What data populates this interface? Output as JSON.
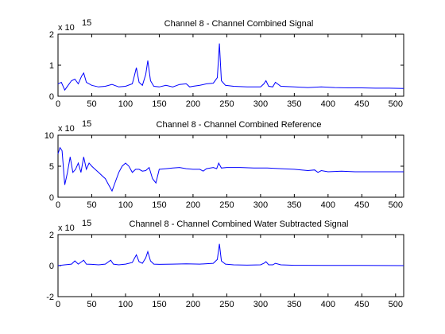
{
  "chart_data": [
    {
      "type": "line",
      "title": "Channel 8 - Channel Combined Signal",
      "y_exponent_label": "x 10",
      "y_exponent": "15",
      "xlim": [
        0,
        512
      ],
      "ylim": [
        0,
        2
      ],
      "xticks": [
        0,
        50,
        100,
        150,
        200,
        250,
        300,
        350,
        400,
        450,
        500
      ],
      "yticks": [
        0,
        1,
        2
      ],
      "color": "#0000ff",
      "series": [
        {
          "x": [
            0,
            5,
            10,
            15,
            20,
            25,
            30,
            35,
            38,
            42,
            50,
            60,
            70,
            80,
            90,
            100,
            110,
            113,
            116,
            120,
            125,
            130,
            133,
            137,
            142,
            150,
            160,
            170,
            180,
            190,
            195,
            200,
            210,
            220,
            230,
            236,
            239,
            242,
            248,
            260,
            280,
            300,
            305,
            308,
            312,
            318,
            322,
            330,
            350,
            370,
            390,
            410,
            430,
            450,
            470,
            490,
            512
          ],
          "y": [
            0.4,
            0.45,
            0.2,
            0.35,
            0.5,
            0.55,
            0.4,
            0.65,
            0.75,
            0.45,
            0.35,
            0.3,
            0.32,
            0.38,
            0.3,
            0.32,
            0.4,
            0.65,
            0.92,
            0.45,
            0.35,
            0.7,
            1.15,
            0.5,
            0.32,
            0.3,
            0.35,
            0.3,
            0.38,
            0.4,
            0.3,
            0.32,
            0.35,
            0.4,
            0.42,
            0.6,
            1.7,
            0.5,
            0.35,
            0.32,
            0.3,
            0.3,
            0.4,
            0.5,
            0.32,
            0.3,
            0.45,
            0.32,
            0.3,
            0.28,
            0.3,
            0.28,
            0.27,
            0.27,
            0.26,
            0.26,
            0.25
          ]
        }
      ]
    },
    {
      "type": "line",
      "title": "Channel 8 - Channel Combined Reference",
      "y_exponent_label": "x 10",
      "y_exponent": "15",
      "xlim": [
        0,
        512
      ],
      "ylim": [
        0,
        10
      ],
      "xticks": [
        0,
        50,
        100,
        150,
        200,
        250,
        300,
        350,
        400,
        450,
        500
      ],
      "yticks": [
        0,
        5,
        10
      ],
      "color": "#0000ff",
      "series": [
        {
          "x": [
            0,
            3,
            6,
            10,
            14,
            18,
            22,
            26,
            30,
            34,
            38,
            42,
            46,
            50,
            55,
            60,
            65,
            70,
            75,
            80,
            85,
            90,
            95,
            100,
            105,
            110,
            115,
            120,
            125,
            130,
            135,
            140,
            145,
            150,
            160,
            170,
            180,
            190,
            200,
            210,
            215,
            220,
            230,
            235,
            238,
            242,
            250,
            270,
            290,
            310,
            330,
            350,
            370,
            380,
            385,
            390,
            400,
            420,
            440,
            460,
            480,
            500,
            512
          ],
          "y": [
            7,
            8,
            7.5,
            2,
            4,
            6.5,
            4,
            4.5,
            5.5,
            4,
            6.5,
            4.5,
            5.5,
            5,
            4.5,
            4,
            3.5,
            3,
            2,
            1,
            2.5,
            4,
            5,
            5.5,
            5,
            4,
            4.5,
            4.5,
            4.2,
            4.3,
            4.8,
            3,
            2.3,
            4.5,
            4.6,
            4.7,
            4.8,
            4.6,
            4.5,
            4.5,
            4.2,
            4.6,
            4.8,
            4.6,
            5.5,
            4.7,
            4.8,
            4.8,
            4.7,
            4.7,
            4.6,
            4.5,
            4.3,
            4.4,
            4,
            4.3,
            4.1,
            4.2,
            4.1,
            4.1,
            4.1,
            4.1,
            4.1
          ]
        }
      ]
    },
    {
      "type": "line",
      "title": "Channel 8 - Channel Combined Water Subtracted Signal",
      "y_exponent_label": "x 10",
      "y_exponent": "15",
      "xlim": [
        0,
        512
      ],
      "ylim": [
        -2,
        2
      ],
      "xticks": [
        0,
        50,
        100,
        150,
        200,
        250,
        300,
        350,
        400,
        450,
        500
      ],
      "yticks": [
        -2,
        0,
        2
      ],
      "color": "#0000ff",
      "series": [
        {
          "x": [
            0,
            10,
            20,
            25,
            30,
            35,
            38,
            42,
            50,
            60,
            70,
            78,
            82,
            90,
            100,
            110,
            113,
            116,
            120,
            125,
            130,
            133,
            137,
            142,
            150,
            170,
            190,
            210,
            230,
            236,
            239,
            242,
            248,
            260,
            280,
            300,
            305,
            308,
            312,
            318,
            322,
            330,
            350,
            400,
            450,
            512
          ],
          "y": [
            0,
            0.05,
            0.1,
            0.3,
            0.1,
            0.25,
            0.35,
            0.1,
            0.08,
            0.05,
            0.1,
            0.35,
            0.1,
            0.05,
            0.1,
            0.2,
            0.45,
            0.7,
            0.25,
            0.15,
            0.5,
            0.9,
            0.3,
            0.1,
            0.08,
            0.1,
            0.12,
            0.1,
            0.15,
            0.4,
            1.4,
            0.3,
            0.1,
            0.05,
            0.03,
            0.05,
            0.15,
            0.25,
            0.05,
            0.05,
            0.15,
            0.05,
            0.02,
            0.01,
            0.01,
            0
          ]
        }
      ]
    }
  ]
}
